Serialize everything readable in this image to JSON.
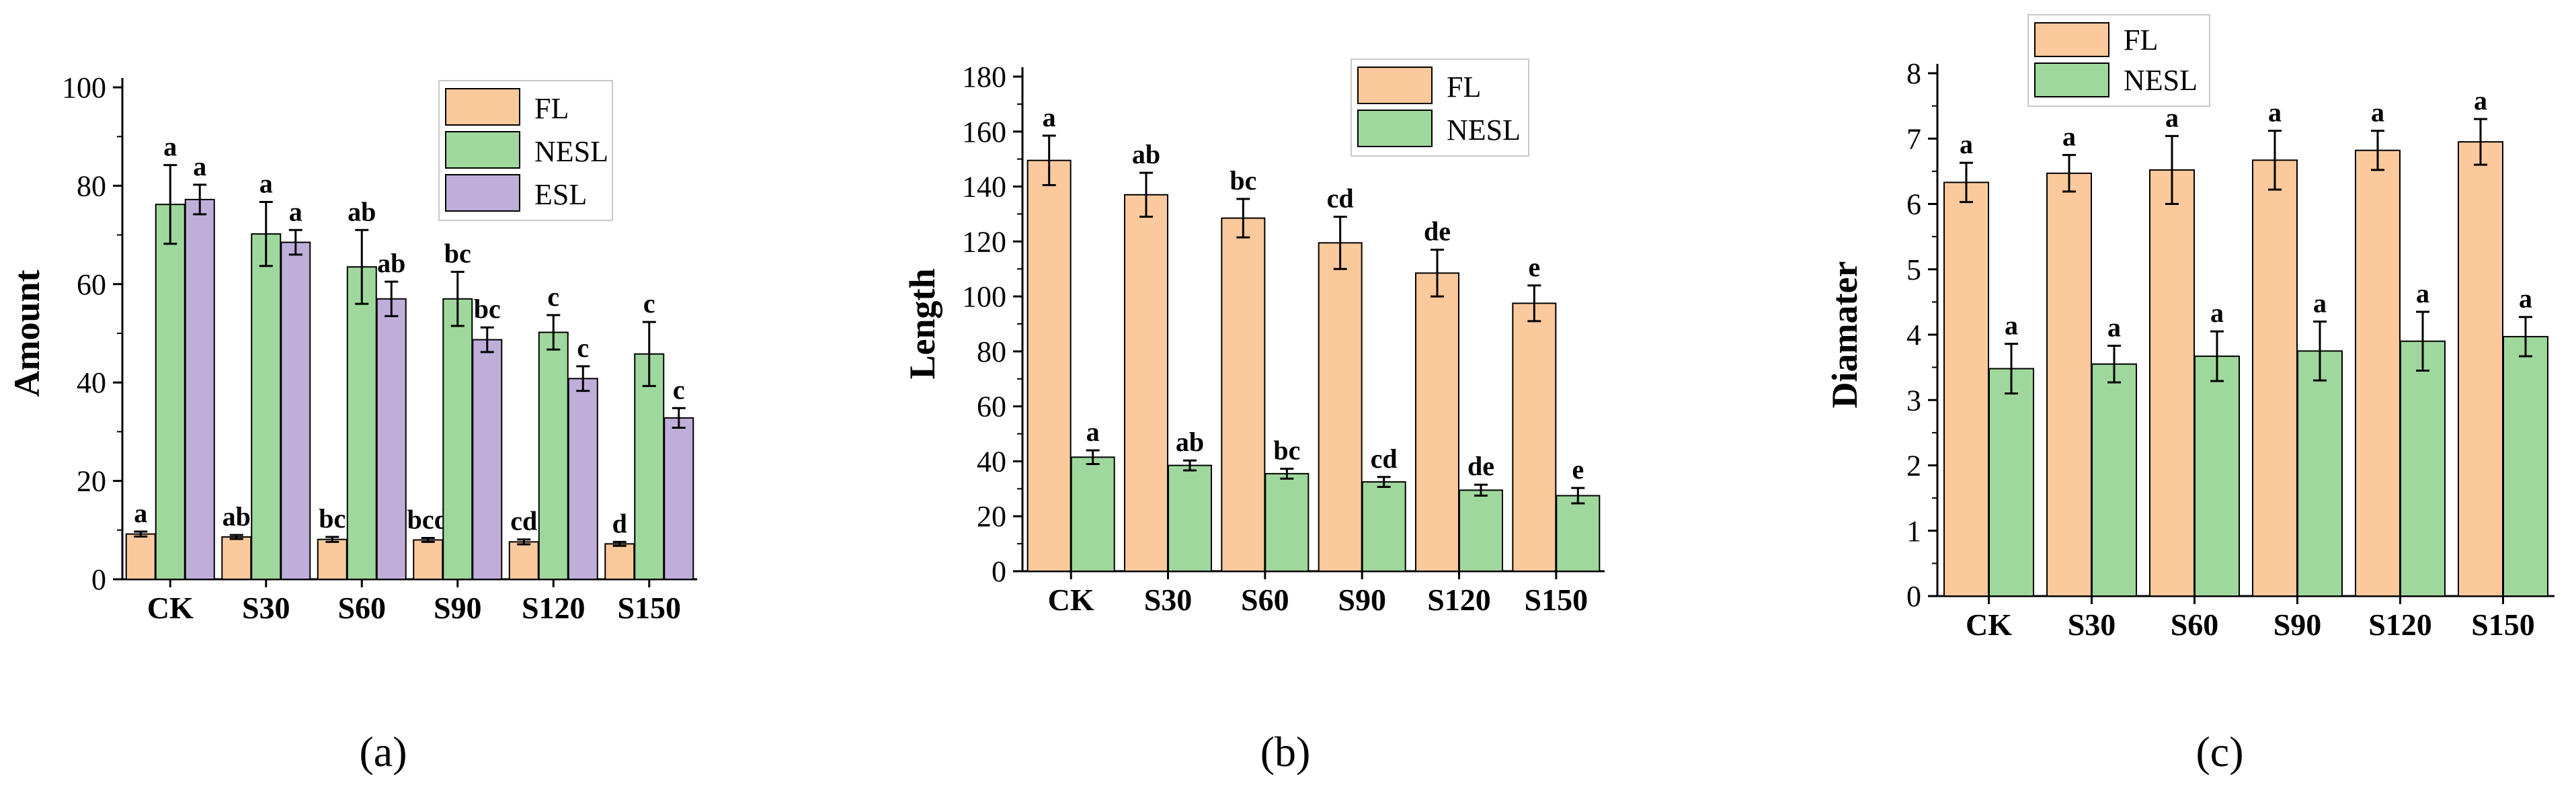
{
  "figure": {
    "panels": [
      "(a)",
      "(b)",
      "(c)"
    ]
  },
  "chart_data": [
    {
      "type": "bar",
      "panel": "(a)",
      "ylabel": "Amount",
      "xlabel": "",
      "ylim": [
        0,
        100
      ],
      "yticks": [
        0,
        20,
        40,
        60,
        80,
        100
      ],
      "categories": [
        "CK",
        "S30",
        "S60",
        "S90",
        "S120",
        "S150"
      ],
      "legend_position": "top-right",
      "series": [
        {
          "name": "FL",
          "color": "#FCC99C",
          "values": [
            9.2,
            8.6,
            8.1,
            8.0,
            7.6,
            7.2
          ],
          "errors": [
            0.5,
            0.4,
            0.5,
            0.4,
            0.5,
            0.4
          ],
          "letters": [
            "a",
            "ab",
            "bc",
            "bcd",
            "cd",
            "d"
          ]
        },
        {
          "name": "NESL",
          "color": "#9FD89C",
          "values": [
            76.2,
            70.2,
            63.5,
            57.0,
            50.2,
            45.8
          ],
          "errors": [
            8.0,
            6.5,
            7.5,
            5.5,
            3.5,
            6.5
          ],
          "letters": [
            "a",
            "a",
            "ab",
            "bc",
            "c",
            "c"
          ]
        },
        {
          "name": "ESL",
          "color": "#BFAEDA",
          "values": [
            77.2,
            68.5,
            57.0,
            48.7,
            40.8,
            32.8
          ],
          "errors": [
            3.0,
            2.5,
            3.5,
            2.5,
            2.5,
            2.0
          ],
          "letters": [
            "a",
            "a",
            "ab",
            "bc",
            "c",
            "c"
          ]
        }
      ]
    },
    {
      "type": "bar",
      "panel": "(b)",
      "ylabel": "Length",
      "xlabel": "",
      "ylim": [
        0,
        180
      ],
      "yticks": [
        0,
        20,
        40,
        60,
        80,
        100,
        120,
        140,
        160,
        180
      ],
      "categories": [
        "CK",
        "S30",
        "S60",
        "S90",
        "S120",
        "S150"
      ],
      "legend_position": "top-right",
      "series": [
        {
          "name": "FL",
          "color": "#FCC99C",
          "values": [
            149.5,
            137.0,
            128.5,
            119.5,
            108.5,
            97.5
          ],
          "errors": [
            9.0,
            8.0,
            7.0,
            9.5,
            8.5,
            6.5
          ],
          "letters": [
            "a",
            "ab",
            "bc",
            "cd",
            "de",
            "e"
          ]
        },
        {
          "name": "NESL",
          "color": "#9FD89C",
          "values": [
            41.5,
            38.5,
            35.5,
            32.5,
            29.5,
            27.5
          ],
          "errors": [
            2.5,
            1.8,
            1.8,
            1.8,
            2.0,
            2.8
          ],
          "letters": [
            "a",
            "ab",
            "bc",
            "cd",
            "de",
            "e"
          ]
        }
      ]
    },
    {
      "type": "bar",
      "panel": "(c)",
      "ylabel": "Diamater",
      "xlabel": "",
      "ylim": [
        0,
        8
      ],
      "yticks": [
        0,
        1,
        2,
        3,
        4,
        5,
        6,
        7,
        8
      ],
      "categories": [
        "CK",
        "S30",
        "S60",
        "S90",
        "S120",
        "S150"
      ],
      "legend_position": "top-left",
      "series": [
        {
          "name": "FL",
          "color": "#FCC99C",
          "values": [
            6.33,
            6.47,
            6.52,
            6.67,
            6.82,
            6.95
          ],
          "errors": [
            0.3,
            0.28,
            0.52,
            0.45,
            0.3,
            0.35
          ],
          "letters": [
            "a",
            "a",
            "a",
            "a",
            "a",
            "a"
          ]
        },
        {
          "name": "NESL",
          "color": "#9FD89C",
          "values": [
            3.48,
            3.55,
            3.67,
            3.75,
            3.9,
            3.97
          ],
          "errors": [
            0.38,
            0.28,
            0.38,
            0.45,
            0.45,
            0.3
          ],
          "letters": [
            "a",
            "a",
            "a",
            "a",
            "a",
            "a"
          ]
        }
      ]
    }
  ]
}
